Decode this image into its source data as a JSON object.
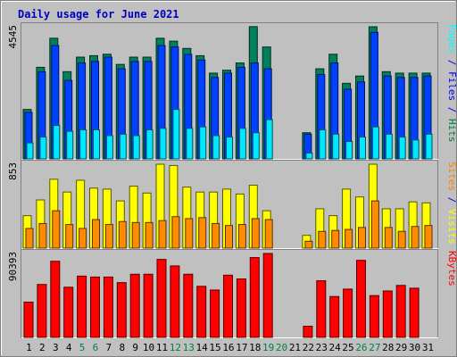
{
  "chart_data": {
    "type": "bar",
    "title": "Daily usage for June 2021",
    "days": [
      "1",
      "2",
      "3",
      "4",
      "5",
      "6",
      "7",
      "8",
      "9",
      "10",
      "11",
      "12",
      "13",
      "14",
      "15",
      "16",
      "17",
      "18",
      "19",
      "20",
      "21",
      "22",
      "23",
      "24",
      "25",
      "26",
      "27",
      "28",
      "29",
      "30",
      "31"
    ],
    "weekend_days": [
      "5",
      "6",
      "12",
      "13",
      "19",
      "20",
      "26",
      "27"
    ],
    "panels": [
      {
        "name": "hits-files-pages",
        "max_label": "4545",
        "ymax": 4545,
        "legend": [
          {
            "text": "Pages",
            "color": "#00ffff"
          },
          {
            "text": " / ",
            "color": "#0000ff"
          },
          {
            "text": "Files",
            "color": "#0000ff"
          },
          {
            "text": " / ",
            "color": "#0000ff"
          },
          {
            "text": "Hits",
            "color": "#008040"
          }
        ],
        "series": [
          {
            "name": "Hits",
            "color": "#00805c",
            "values": [
              1700,
              3150,
              4150,
              3000,
              3500,
              3550,
              3600,
              3250,
              3500,
              3500,
              4150,
              4050,
              3800,
              3550,
              2950,
              3050,
              3300,
              4550,
              3850,
              0,
              0,
              900,
              3100,
              3600,
              2600,
              2850,
              4545,
              3000,
              2950,
              2950,
              2950
            ]
          },
          {
            "name": "Files",
            "color": "#0040ff",
            "values": [
              1600,
              3000,
              3900,
              2700,
              3300,
              3350,
              3500,
              3100,
              3350,
              3350,
              3900,
              3850,
              3600,
              3400,
              2800,
              2950,
              3150,
              3300,
              3100,
              0,
              0,
              850,
              2900,
              3300,
              2400,
              2650,
              4350,
              2850,
              2800,
              2800,
              2850
            ]
          },
          {
            "name": "Pages",
            "color": "#00e8ff",
            "values": [
              550,
              750,
              1150,
              950,
              1000,
              1000,
              800,
              850,
              800,
              1000,
              1050,
              1700,
              1050,
              1100,
              800,
              750,
              1050,
              900,
              1350,
              0,
              0,
              200,
              1000,
              850,
              600,
              750,
              1100,
              850,
              750,
              650,
              850
            ]
          }
        ]
      },
      {
        "name": "visits-sites",
        "max_label": "853",
        "ymax": 853,
        "legend": [
          {
            "text": "Sites",
            "color": "#ff8000"
          },
          {
            "text": " / ",
            "color": "#0000ff"
          },
          {
            "text": "Visits",
            "color": "#ffff00"
          }
        ],
        "series": [
          {
            "name": "Visits",
            "color": "#ffff00",
            "values": [
              330,
              490,
              700,
              570,
              690,
              610,
              600,
              480,
              630,
              560,
              853,
              840,
              620,
              570,
              570,
              600,
              550,
              640,
              380,
              0,
              0,
              130,
              400,
              330,
              600,
              520,
              853,
              400,
              400,
              470,
              460
            ]
          },
          {
            "name": "Sites",
            "color": "#ff8c00",
            "values": [
              200,
              250,
              380,
              240,
              200,
              290,
              240,
              270,
              260,
              260,
              280,
              320,
              300,
              310,
              250,
              230,
              240,
              300,
              290,
              0,
              0,
              70,
              170,
              180,
              190,
              210,
              480,
              210,
              170,
              220,
              230
            ]
          }
        ]
      },
      {
        "name": "kbytes",
        "max_label": "90393",
        "ymax": 90393,
        "legend": [
          {
            "text": "KBytes",
            "color": "#ff0000"
          }
        ],
        "series": [
          {
            "name": "KBytes",
            "color": "#ff0000",
            "values": [
              38000,
              57000,
              82000,
              54000,
              66000,
              65000,
              65000,
              59000,
              68000,
              68000,
              84000,
              77000,
              68000,
              55000,
              51000,
              67000,
              63000,
              86000,
              90393,
              0,
              0,
              12000,
              61000,
              44000,
              52000,
              83000,
              45000,
              50000,
              56000,
              53000,
              0
            ]
          }
        ]
      }
    ]
  }
}
